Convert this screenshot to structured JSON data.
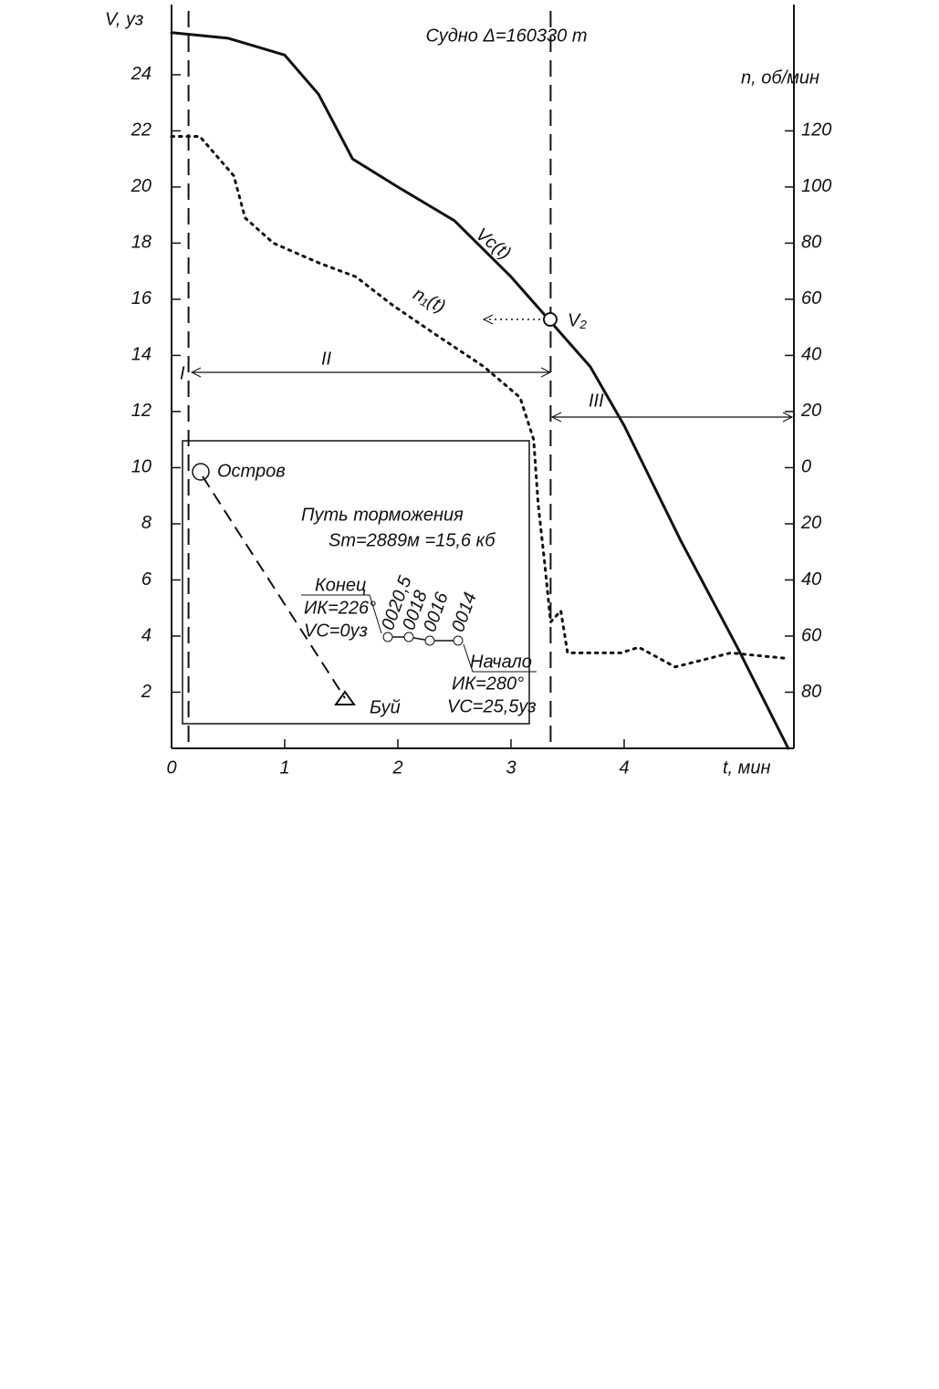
{
  "chart_data": {
    "type": "line",
    "title": "Судно Δ=160330 т",
    "y_label": "V, уз",
    "y2_label": "n, об/мин",
    "x_label": "t, мин",
    "xlim": [
      0,
      5.5
    ],
    "xticks": [
      0,
      1,
      2,
      3,
      4
    ],
    "ylim": [
      0,
      26.5
    ],
    "yticks": [
      2,
      4,
      6,
      8,
      10,
      12,
      14,
      16,
      18,
      20,
      22,
      24
    ],
    "y2lim": [
      -100,
      165
    ],
    "y2ticks": [
      120,
      100,
      80,
      60,
      40,
      20,
      0,
      {
        "value": -20,
        "label": "20"
      },
      {
        "value": -40,
        "label": "40"
      },
      {
        "value": -60,
        "label": "60"
      },
      {
        "value": -80,
        "label": "80"
      }
    ],
    "series": [
      {
        "name": "Vc(t)",
        "color": "#111111",
        "style": "solid",
        "x": [
          0,
          0.5,
          1,
          1.3,
          1.6,
          2,
          2.5,
          3,
          3.35,
          3.7,
          4,
          4.5,
          5,
          5.45
        ],
        "values": [
          25.5,
          25.3,
          24.7,
          23.3,
          21,
          20,
          18.8,
          16.8,
          15.2,
          13.6,
          11.5,
          7.4,
          3.6,
          0
        ]
      },
      {
        "name": "n₁(t)",
        "color": "#111111",
        "style": "dotted",
        "axis": "y2",
        "x": [
          0,
          0.25,
          0.55,
          0.65,
          0.9,
          1.3,
          1.63,
          1.95,
          2.35,
          2.76,
          3.08,
          3.2,
          3.24,
          3.3,
          3.35,
          3.44,
          3.5,
          3.97,
          4.13,
          4.45,
          4.94,
          5.45
        ],
        "values": [
          118,
          118,
          104,
          89,
          80,
          73,
          68,
          58,
          47,
          36,
          25,
          10,
          -13,
          -35,
          -55,
          -51,
          -66,
          -66,
          -64,
          -71,
          -66,
          -68
        ]
      }
    ],
    "vlines": [
      0.15,
      3.35
    ],
    "point_label": "V₂",
    "region_labels": [
      "I",
      "II",
      "III"
    ],
    "inset": {
      "labels": [
        "Остров",
        "Путь торможения",
        "Sт=2889м =15,6 кб",
        "Конец",
        "ИК=226°",
        "VC=0уз",
        "0020,5",
        "0018",
        "0016",
        "0014",
        "Начало",
        "ИК=280°",
        "VC=25,5уз",
        "Буй"
      ]
    }
  }
}
